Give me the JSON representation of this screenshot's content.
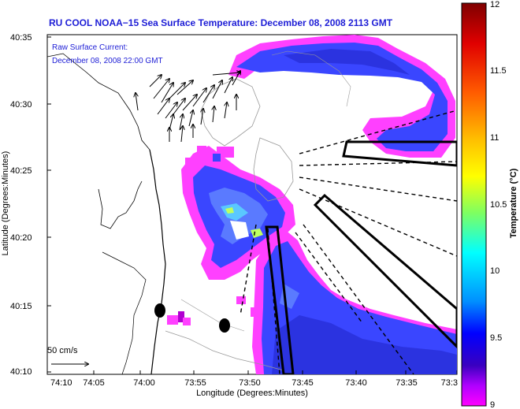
{
  "title": "RU COOL  NOAA−15  Sea Surface Temperature:  December 08, 2008 2113 GMT",
  "annotation": {
    "line1": "Raw Surface Current:",
    "line2": "December 08, 2008 22:00 GMT"
  },
  "scale": {
    "label": "50 cm/s"
  },
  "x_axis": {
    "label": "Longitude (Degrees:Minutes)",
    "ticks": [
      "74:10",
      "74:05",
      "74:00",
      "73:55",
      "73:50",
      "73:45",
      "73:40",
      "73:35",
      "73:3"
    ]
  },
  "y_axis": {
    "label": "Latitude (Degrees:Minutes)",
    "ticks": [
      "40:35",
      "40:30",
      "40:25",
      "40:20",
      "40:15",
      "40:10"
    ]
  },
  "colorbar": {
    "label": "Temperature (°C)",
    "ticks": [
      "12",
      "11.5",
      "11",
      "10.5",
      "10",
      "9.5",
      "9"
    ],
    "colors": [
      "#7f0000",
      "#ff0000",
      "#ff7f00",
      "#ffff00",
      "#7fff7f",
      "#00ffff",
      "#007fff",
      "#0000ff",
      "#00008f",
      "#ff00ff"
    ]
  },
  "colors": {
    "title": "#1d1dd6",
    "sst_high": "#3a46ff",
    "sst_low": "#ff3cff"
  }
}
